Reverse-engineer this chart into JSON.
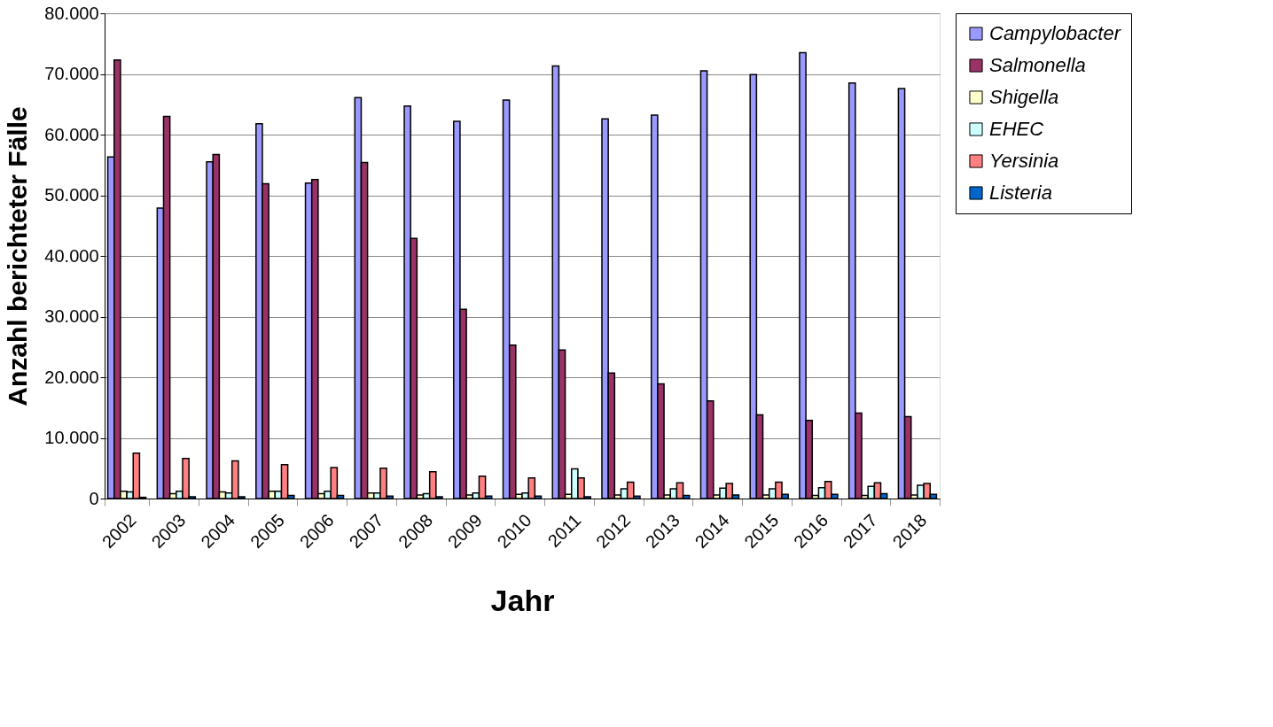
{
  "chart_data": {
    "type": "bar",
    "xlabel": "Jahr",
    "ylabel": "Anzahl berichteter Fälle",
    "categories": [
      "2002",
      "2003",
      "2004",
      "2005",
      "2006",
      "2007",
      "2008",
      "2009",
      "2010",
      "2011",
      "2012",
      "2013",
      "2014",
      "2015",
      "2016",
      "2017",
      "2018"
    ],
    "series": [
      {
        "name": "Campylobacter",
        "color": "#9999ff",
        "values": [
          56300,
          47900,
          55500,
          61800,
          52000,
          66100,
          64700,
          62200,
          65700,
          71300,
          62600,
          63200,
          70500,
          69900,
          73500,
          68500,
          67600
        ]
      },
      {
        "name": "Salmonella",
        "color": "#993366",
        "values": [
          72300,
          63000,
          56700,
          51900,
          52600,
          55400,
          42900,
          31200,
          25300,
          24500,
          20700,
          18900,
          16100,
          13800,
          12900,
          14100,
          13500
        ]
      },
      {
        "name": "Shigella",
        "color": "#ffffcc",
        "values": [
          1200,
          800,
          1100,
          1200,
          800,
          900,
          600,
          600,
          700,
          700,
          600,
          600,
          600,
          600,
          500,
          500,
          600
        ]
      },
      {
        "name": "EHEC",
        "color": "#ccffff",
        "values": [
          1100,
          1200,
          900,
          1200,
          1200,
          900,
          800,
          900,
          900,
          4900,
          1600,
          1600,
          1700,
          1600,
          1800,
          2000,
          2200
        ]
      },
      {
        "name": "Yersinia",
        "color": "#ff8080",
        "values": [
          7500,
          6600,
          6200,
          5600,
          5100,
          5000,
          4400,
          3700,
          3400,
          3400,
          2700,
          2600,
          2500,
          2700,
          2800,
          2600,
          2500
        ]
      },
      {
        "name": "Listeria",
        "color": "#0066cc",
        "values": [
          200,
          300,
          300,
          500,
          500,
          400,
          300,
          400,
          400,
          300,
          400,
          500,
          600,
          700,
          700,
          800,
          700
        ]
      }
    ],
    "ylim": [
      0,
      80000
    ],
    "yticks": [
      0,
      {
        "value": 10000,
        "label": "10.000"
      },
      {
        "value": 20000,
        "label": "20.000"
      },
      {
        "value": 30000,
        "label": "30.000"
      },
      {
        "value": 40000,
        "label": "40.000"
      },
      {
        "value": 50000,
        "label": "50.000"
      },
      {
        "value": 60000,
        "label": "60.000"
      },
      {
        "value": 70000,
        "label": "70.000"
      },
      {
        "value": 80000,
        "label": "80.000"
      }
    ],
    "grid": "y",
    "legend": "right"
  }
}
